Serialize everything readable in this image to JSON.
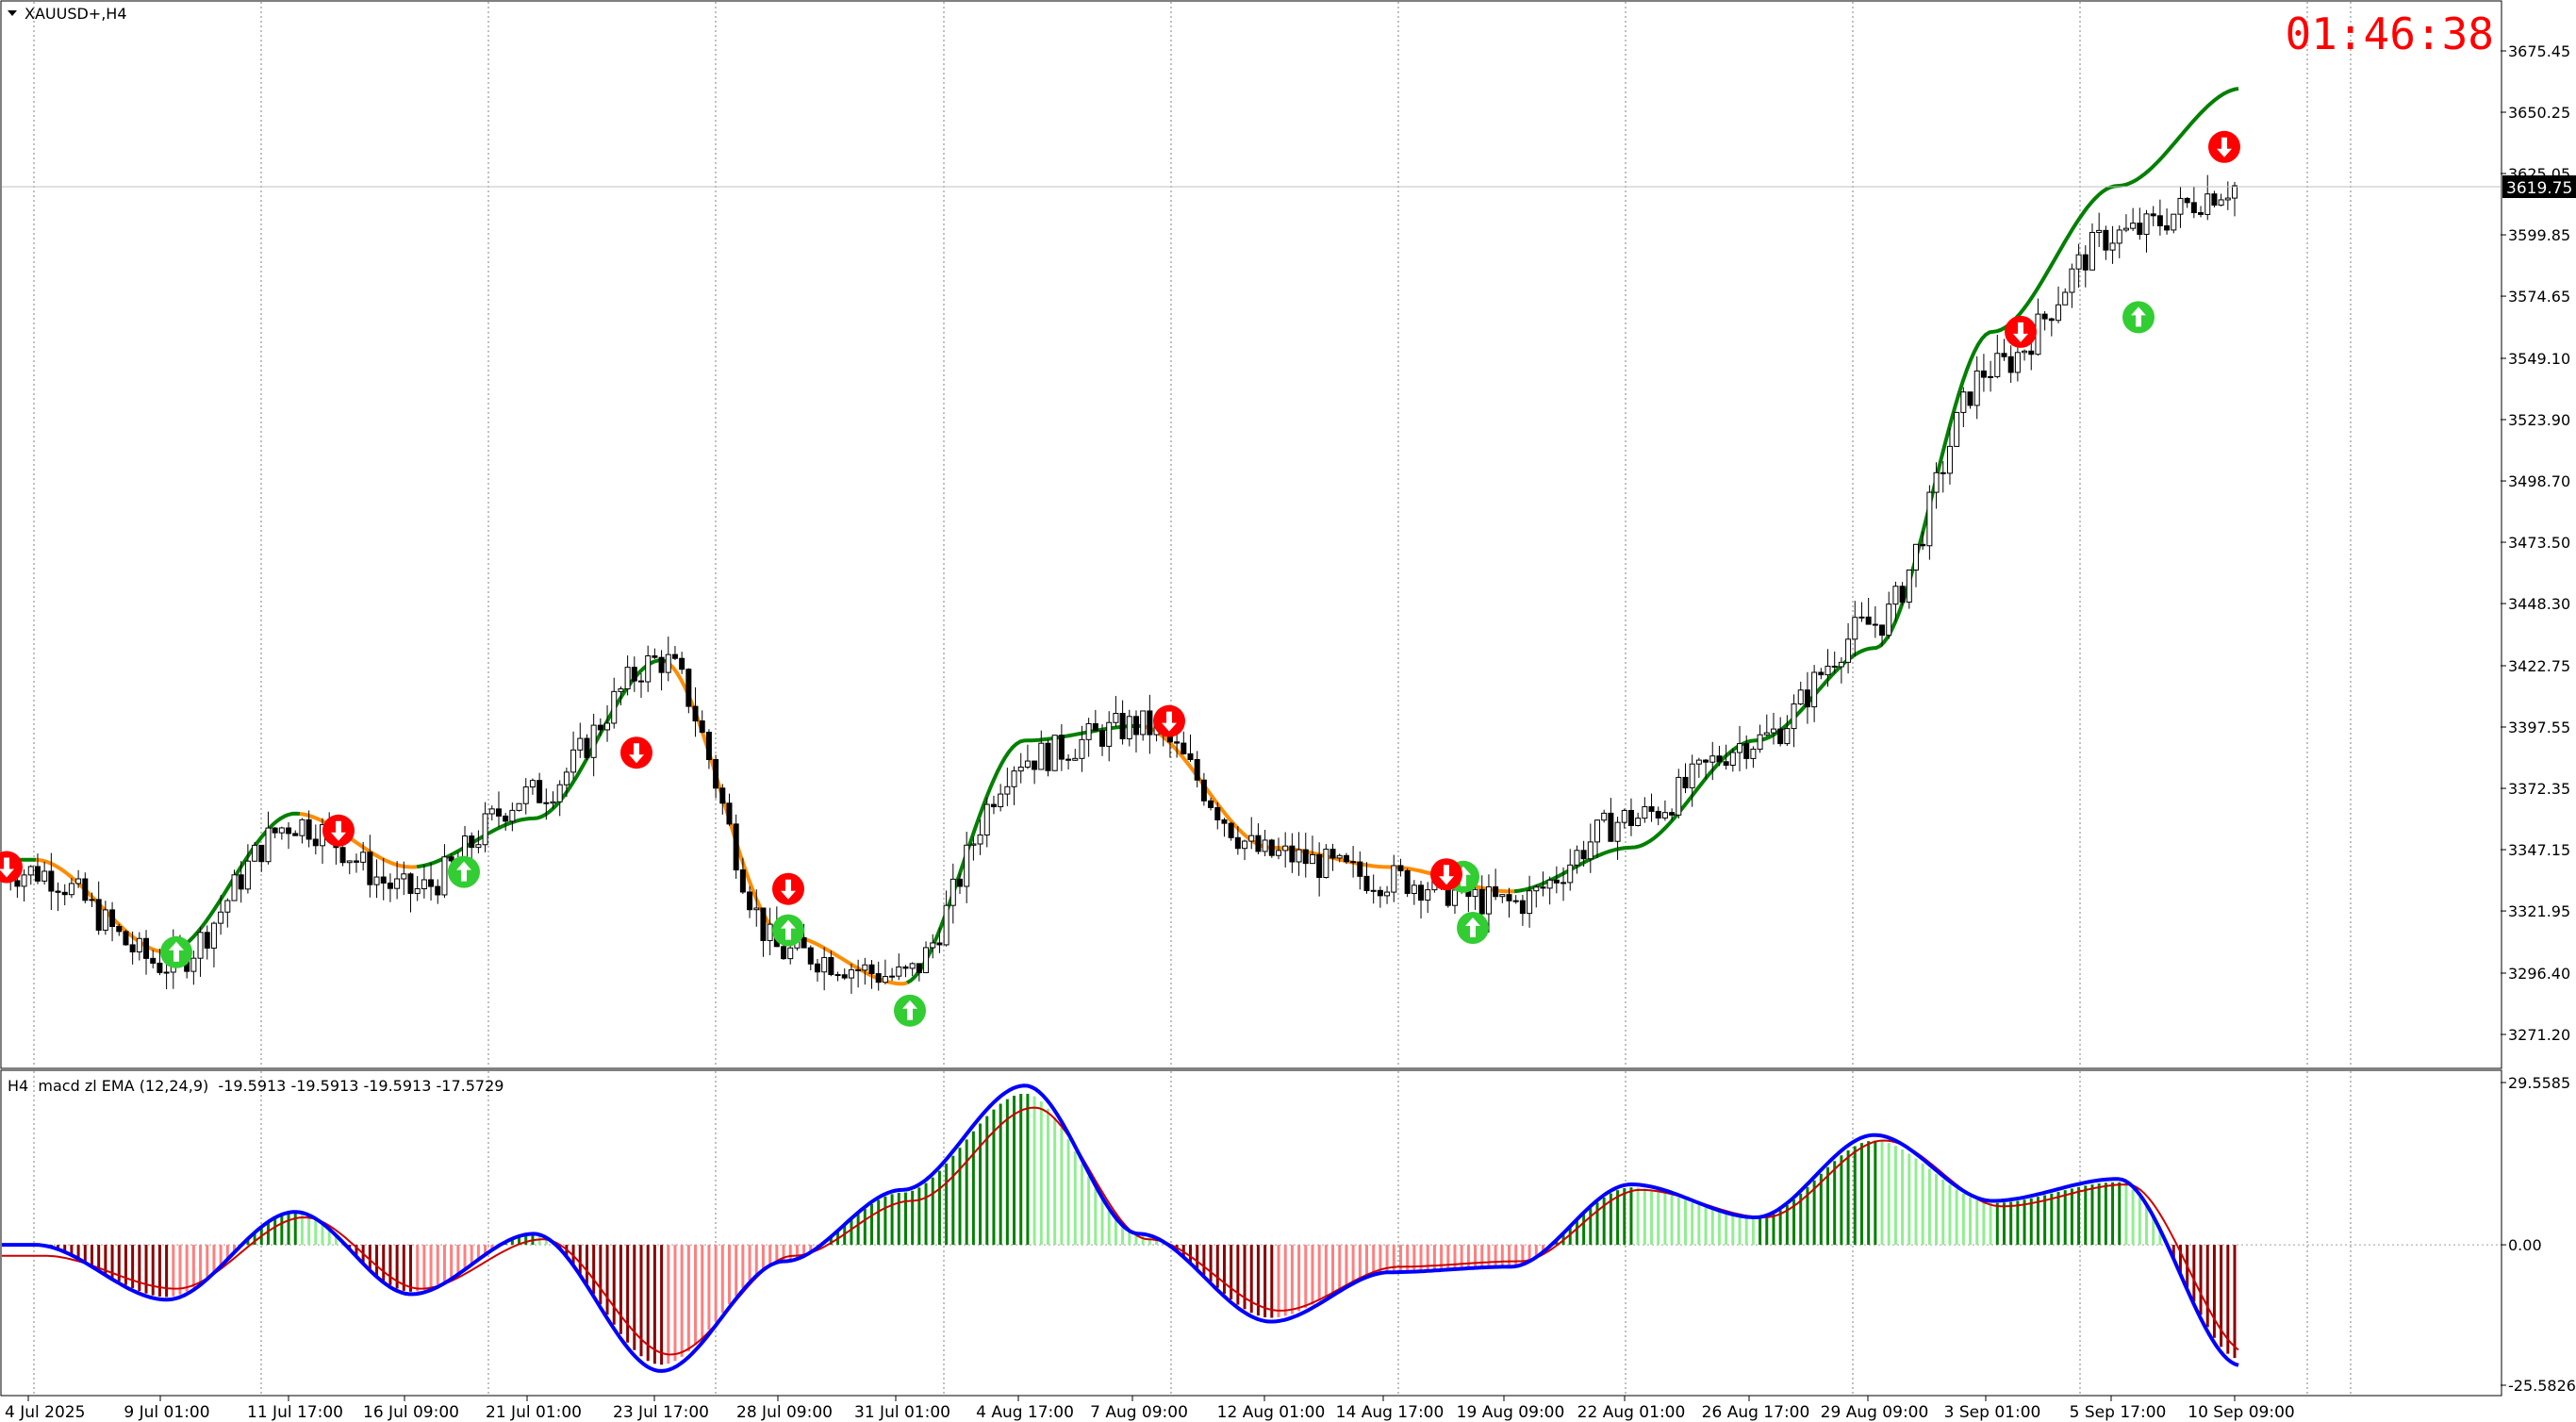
{
  "header": {
    "menu_icon": "triangle-down-icon",
    "symbol_label": "XAUUSD+,H4"
  },
  "timer": {
    "text": "01:46:38",
    "color": "#ff0000"
  },
  "price_panel": {
    "y_ticks": [
      "3675.45",
      "3650.25",
      "3625.05",
      "3599.85",
      "3574.65",
      "3549.10",
      "3523.90",
      "3498.70",
      "3473.50",
      "3448.30",
      "3422.75",
      "3397.55",
      "3372.35",
      "3347.15",
      "3321.95",
      "3296.40",
      "3271.20"
    ],
    "current_price": "3619.75"
  },
  "indicator_panel": {
    "label": "H4  macd zl EMA (12,24,9)  -19.5913 -19.5913 -19.5913 -17.5729",
    "y_ticks": [
      "29.5585",
      "0.00",
      "-25.5826"
    ]
  },
  "x_ticks": [
    "4 Jul 2025",
    "9 Jul 01:00",
    "11 Jul 17:00",
    "16 Jul 09:00",
    "21 Jul 01:00",
    "23 Jul 17:00",
    "28 Jul 09:00",
    "31 Jul 01:00",
    "4 Aug 17:00",
    "7 Aug 09:00",
    "12 Aug 01:00",
    "14 Aug 17:00",
    "19 Aug 09:00",
    "22 Aug 01:00",
    "26 Aug 17:00",
    "29 Aug 09:00",
    "3 Sep 01:00",
    "5 Sep 17:00",
    "10 Sep 09:00"
  ],
  "colors": {
    "bull_trend": "#008000",
    "bear_trend": "#ff8c00",
    "up_arrow": "#32cd32",
    "down_arrow": "#ff0000",
    "macd_line": "#0000ff",
    "signal_line": "#cc0000",
    "hist_pos_strong": "#008000",
    "hist_pos_weak": "#90ee90",
    "hist_neg_strong": "#8b0000",
    "hist_neg_weak": "#ff7f7f"
  },
  "chart_data": [
    {
      "type": "candlestick",
      "title": "XAUUSD+,H4",
      "ylim": [
        3271.2,
        3675.45
      ],
      "x": [
        "4 Jul 2025",
        "9 Jul 01:00",
        "11 Jul 17:00",
        "16 Jul 09:00",
        "21 Jul 01:00",
        "23 Jul 17:00",
        "28 Jul 09:00",
        "31 Jul 01:00",
        "4 Aug 17:00",
        "7 Aug 09:00",
        "12 Aug 01:00",
        "14 Aug 17:00",
        "19 Aug 09:00",
        "22 Aug 01:00",
        "26 Aug 17:00",
        "29 Aug 09:00",
        "3 Sep 01:00",
        "5 Sep 17:00",
        "10 Sep 09:00"
      ],
      "close_approx": [
        3338,
        3300,
        3358,
        3330,
        3370,
        3425,
        3305,
        3295,
        3385,
        3398,
        3345,
        3335,
        3325,
        3360,
        3392,
        3440,
        3545,
        3600,
        3620
      ],
      "trend_line": [
        3343,
        3305,
        3362,
        3340,
        3360,
        3425,
        3312,
        3292,
        3392,
        3398,
        3348,
        3340,
        3330,
        3348,
        3392,
        3430,
        3560,
        3620,
        3660
      ],
      "signals": [
        {
          "x": "4 Jul 2025",
          "type": "sell",
          "price": 3340
        },
        {
          "x": "9 Jul 01:00",
          "type": "buy",
          "price": 3305
        },
        {
          "x": "11 Jul 17:00",
          "type": "sell",
          "price": 3355
        },
        {
          "x": "16 Jul 09:00",
          "type": "buy",
          "price": 3338
        },
        {
          "x": "23 Jul 17:00",
          "type": "sell",
          "price": 3387
        },
        {
          "x": "28 Jul 09:00",
          "type": "sell",
          "price": 3331
        },
        {
          "x": "28 Jul 09:00",
          "type": "buy",
          "price": 3314
        },
        {
          "x": "31 Jul 01:00",
          "type": "buy",
          "price": 3281
        },
        {
          "x": "7 Aug 09:00",
          "type": "sell",
          "price": 3400
        },
        {
          "x": "14 Aug 17:00",
          "type": "buy",
          "price": 3336
        },
        {
          "x": "14 Aug 17:00",
          "type": "sell",
          "price": 3337
        },
        {
          "x": "19 Aug 09:00",
          "type": "buy",
          "price": 3315
        },
        {
          "x": "3 Sep 01:00",
          "type": "sell",
          "price": 3560
        },
        {
          "x": "5 Sep 17:00",
          "type": "buy",
          "price": 3566
        },
        {
          "x": "10 Sep 09:00",
          "type": "sell",
          "price": 3636
        }
      ],
      "current_price": 3619.75
    },
    {
      "type": "bar",
      "title": "macd zl EMA (12,24,9)",
      "ylim": [
        -25.5826,
        29.5585
      ],
      "macd": [
        0,
        -10,
        6,
        -9,
        2,
        -23,
        -3,
        10,
        29,
        2,
        -14,
        -5,
        -4,
        11,
        5,
        20,
        8,
        12,
        -22
      ],
      "signal": [
        -2,
        -8,
        5,
        -8,
        1,
        -20,
        -2,
        8,
        25,
        1,
        -12,
        -4,
        -3,
        10,
        5,
        19,
        7,
        11,
        -20
      ]
    }
  ]
}
